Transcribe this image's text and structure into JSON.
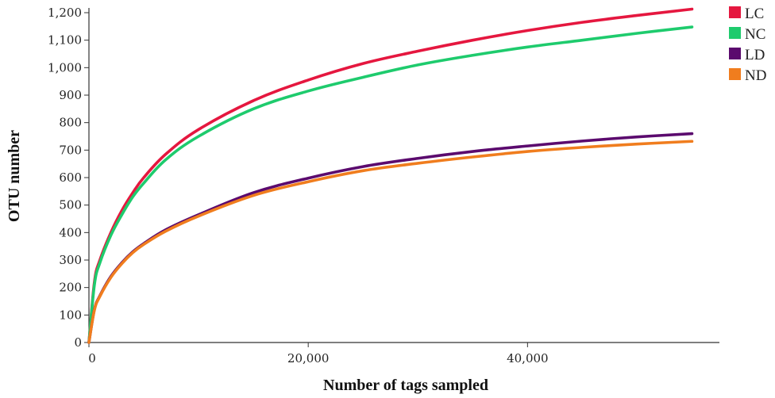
{
  "chart_data": {
    "type": "line",
    "xlabel": "Number of tags sampled",
    "ylabel": "OTU number",
    "xlim": [
      0,
      57500
    ],
    "ylim": [
      0,
      1200
    ],
    "x_ticks": [
      0,
      20000,
      40000
    ],
    "x_tick_labels": [
      "0",
      "20,000",
      "40,000"
    ],
    "y_ticks": [
      0,
      100,
      200,
      300,
      400,
      500,
      600,
      700,
      800,
      900,
      1000,
      1100,
      1200
    ],
    "y_tick_labels": [
      "0",
      "100",
      "200",
      "300",
      "400",
      "500",
      "600",
      "700",
      "800",
      "900",
      "1,000",
      "1,100",
      "1,200"
    ],
    "grid": false,
    "legend_position": "top-right",
    "x": [
      0,
      500,
      1000,
      2000,
      3000,
      4000,
      5000,
      7000,
      10000,
      15000,
      20000,
      25000,
      30000,
      35000,
      40000,
      45000,
      50000,
      55000
    ],
    "series": [
      {
        "name": "LC",
        "color": "#e5173f",
        "values": [
          0,
          220,
          300,
          400,
          480,
          545,
          600,
          685,
          775,
          880,
          955,
          1015,
          1060,
          1100,
          1135,
          1165,
          1190,
          1213
        ]
      },
      {
        "name": "NC",
        "color": "#1ecb6d",
        "values": [
          0,
          210,
          290,
          390,
          465,
          530,
          580,
          665,
          750,
          850,
          915,
          965,
          1010,
          1045,
          1075,
          1100,
          1125,
          1148
        ]
      },
      {
        "name": "LD",
        "color": "#5b0a6e",
        "values": [
          0,
          120,
          170,
          240,
          290,
          330,
          360,
          410,
          465,
          545,
          598,
          640,
          670,
          695,
          715,
          733,
          748,
          760
        ]
      },
      {
        "name": "ND",
        "color": "#f07d1e",
        "values": [
          0,
          118,
          168,
          237,
          287,
          327,
          357,
          405,
          460,
          535,
          585,
          625,
          652,
          675,
          695,
          710,
          722,
          732
        ]
      }
    ]
  }
}
